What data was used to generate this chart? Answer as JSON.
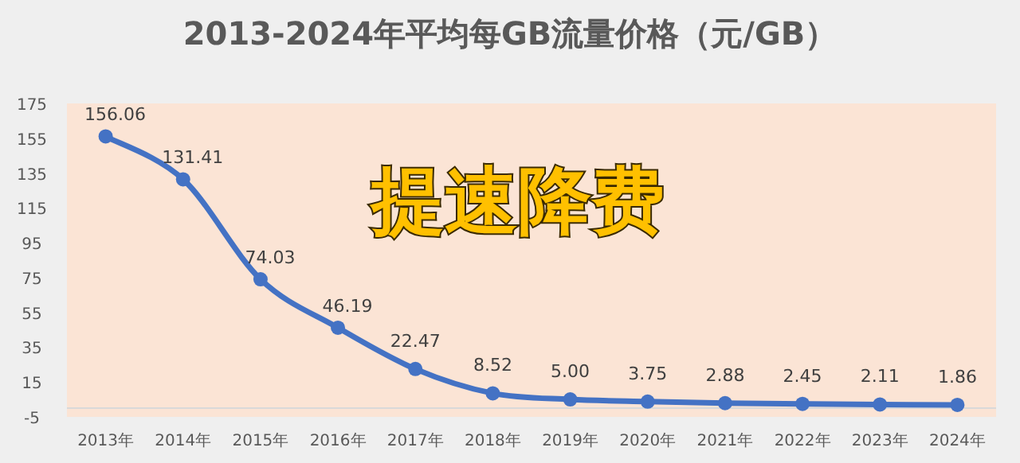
{
  "chart_data": {
    "type": "line",
    "title": "2013-2024年平均每GB流量价格（元/GB）",
    "categories": [
      "2013年",
      "2014年",
      "2015年",
      "2016年",
      "2017年",
      "2018年",
      "2019年",
      "2020年",
      "2021年",
      "2022年",
      "2023年",
      "2024年"
    ],
    "series": [
      {
        "color": "#4472c4",
        "values": [
          156.06,
          131.41,
          74.03,
          46.19,
          22.47,
          8.52,
          5.0,
          3.75,
          2.88,
          2.45,
          2.11,
          1.86
        ],
        "value_labels": [
          "156.06",
          "131.41",
          "74.03",
          "46.19",
          "22.47",
          "8.52",
          "5.00",
          "3.75",
          "2.88",
          "2.45",
          "2.11",
          "1.86"
        ]
      }
    ],
    "ylim": [
      -5,
      175
    ],
    "yticks": [
      -5,
      15,
      35,
      55,
      75,
      95,
      115,
      135,
      155,
      175
    ],
    "marker": "circle",
    "line_style": "solid",
    "grid": false,
    "annotations": [
      "提速降费"
    ]
  }
}
